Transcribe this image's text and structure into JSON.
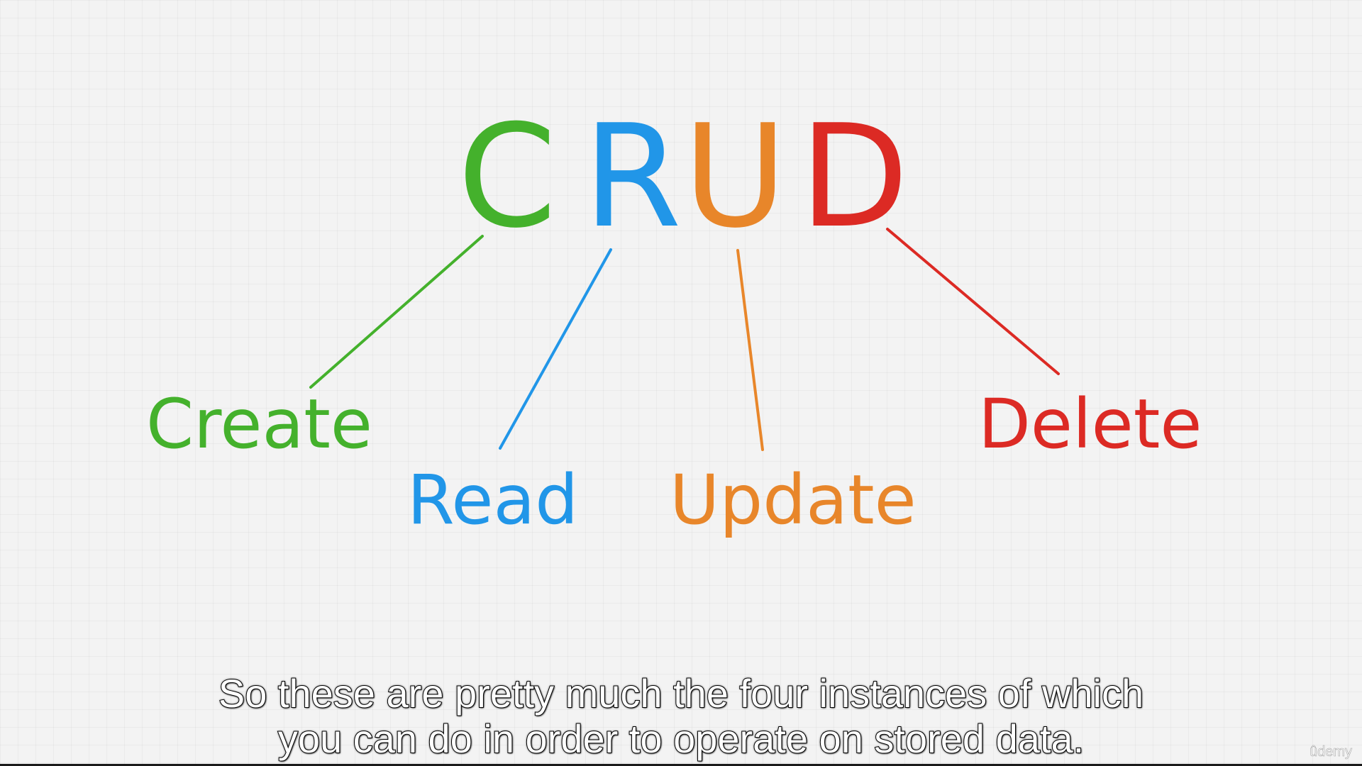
{
  "diagram": {
    "letters": [
      {
        "char": "C",
        "color": "#44b12c"
      },
      {
        "char": "R",
        "color": "#2196e8"
      },
      {
        "char": "U",
        "color": "#e8862a"
      },
      {
        "char": "D",
        "color": "#dc2a24"
      }
    ],
    "words": {
      "create": {
        "text": "Create",
        "color": "#44b12c"
      },
      "read": {
        "text": "Read",
        "color": "#2196e8"
      },
      "update": {
        "text": "Update",
        "color": "#e8862a"
      },
      "delete": {
        "text": "Delete",
        "color": "#dc2a24"
      }
    },
    "background_color": "#f3f3f3"
  },
  "subtitles": {
    "line1": "So these are pretty much the four instances of which",
    "line2": "you can do in order to operate on stored data."
  },
  "watermark": {
    "text": "ûdemy"
  }
}
